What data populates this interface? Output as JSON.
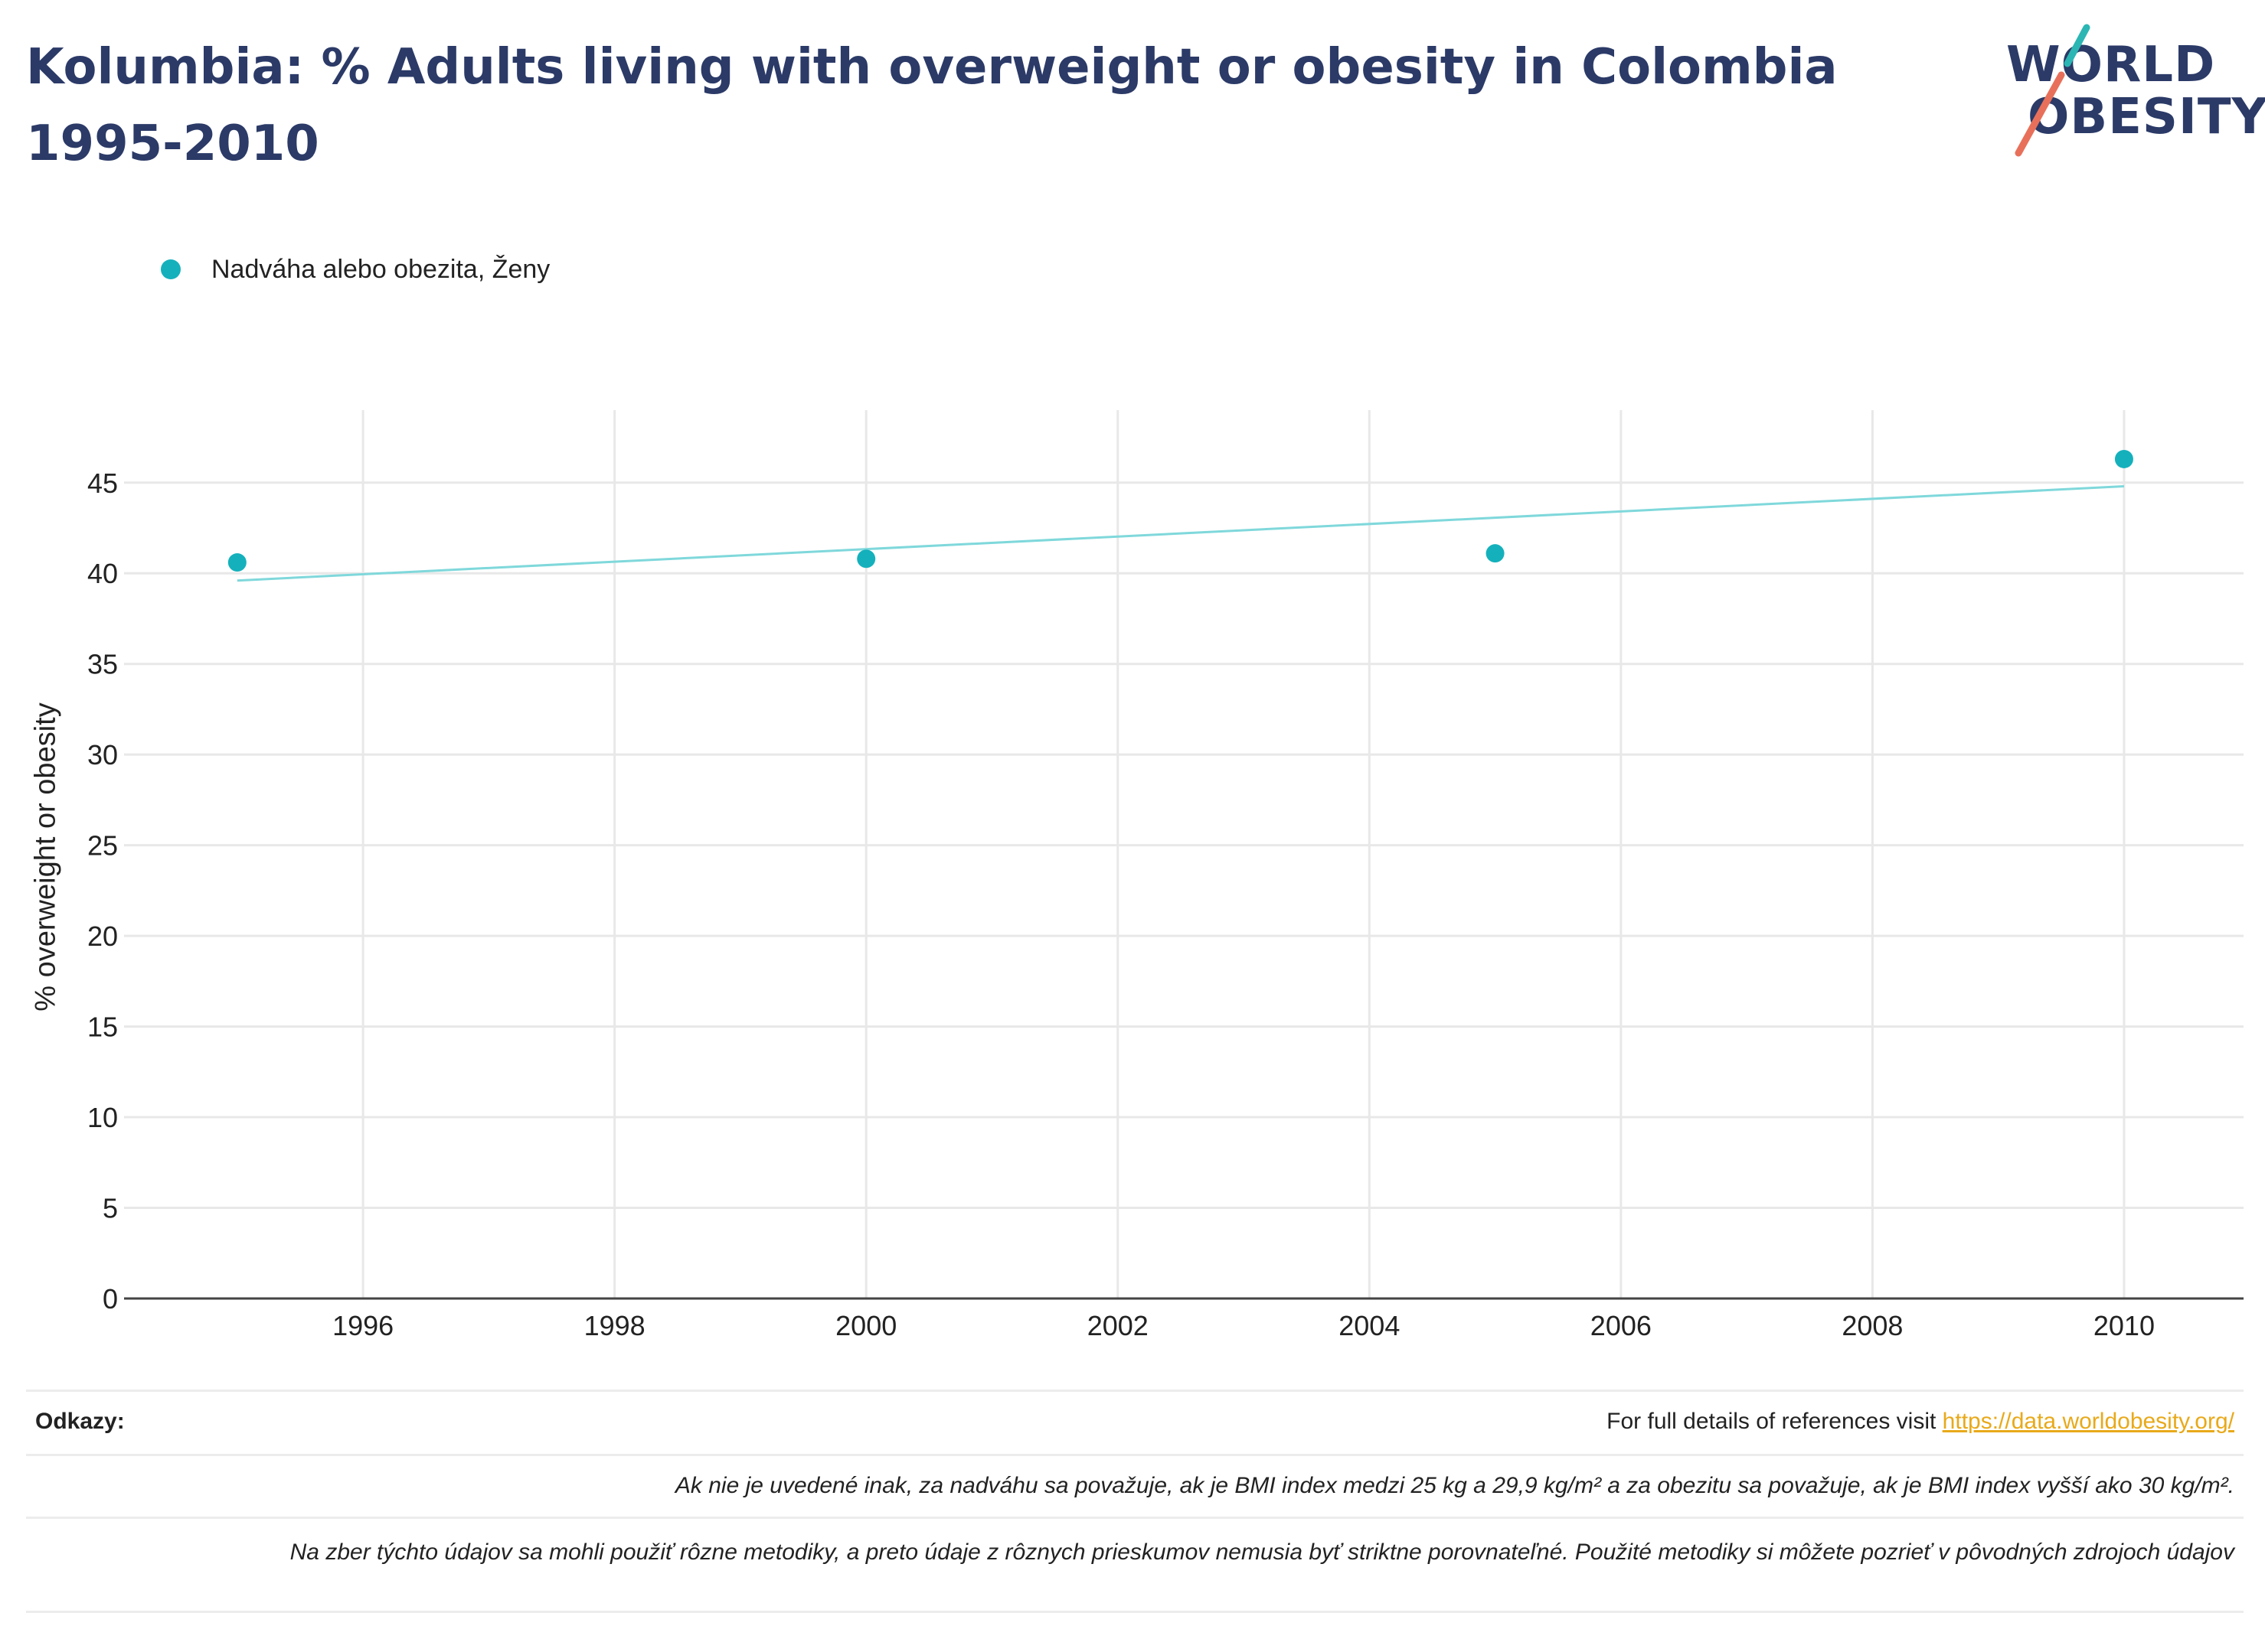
{
  "header": {
    "title_line1": "Kolumbia: % Adults living with overweight or obesity in Colombia",
    "title_line2": "1995-2010"
  },
  "logo": {
    "line1": "WORLD",
    "line2": "OBESITY",
    "colors": {
      "text": "#2b3a67",
      "slash_teal": "#2bb6b4",
      "slash_coral": "#e8705a"
    }
  },
  "chart_data": {
    "type": "scatter",
    "title": "Kolumbia: % Adults living with overweight or obesity in Colombia 1995-2010",
    "xlabel": "",
    "ylabel": "% overweight or obesity",
    "xlim": [
      1994.1,
      2010.95
    ],
    "ylim": [
      0,
      49
    ],
    "x_ticks": [
      1996,
      1998,
      2000,
      2002,
      2004,
      2006,
      2008,
      2010
    ],
    "y_ticks": [
      0,
      5,
      10,
      15,
      20,
      25,
      30,
      35,
      40,
      45
    ],
    "grid": true,
    "legend_position": "top-left",
    "series": [
      {
        "name": "Nadváha alebo obezita, Ženy",
        "color": "#14b1bc",
        "x": [
          1995,
          2000,
          2005,
          2010
        ],
        "y": [
          40.6,
          40.8,
          41.1,
          46.3
        ]
      }
    ],
    "trendline": {
      "color": "#7fd8db",
      "x": [
        1995,
        2010
      ],
      "y": [
        39.6,
        44.8
      ]
    }
  },
  "notes": {
    "references_label": "Odkazy:",
    "references_text": "For full details of references visit ",
    "references_link": "https://data.worldobesity.org/",
    "definition": "Ak nie je uvedené inak, za nadváhu sa považuje, ak je BMI index medzi 25 kg a 29,9 kg/m² a za obezitu sa považuje, ak je BMI index vyšší ako 30 kg/m².",
    "methodology": "Na zber týchto údajov sa mohli použiť rôzne metodiky, a preto údaje z rôznych prieskumov nemusia byť striktne porovnateľné. Použité metodiky si môžete pozrieť v pôvodných zdrojoch údajov"
  }
}
